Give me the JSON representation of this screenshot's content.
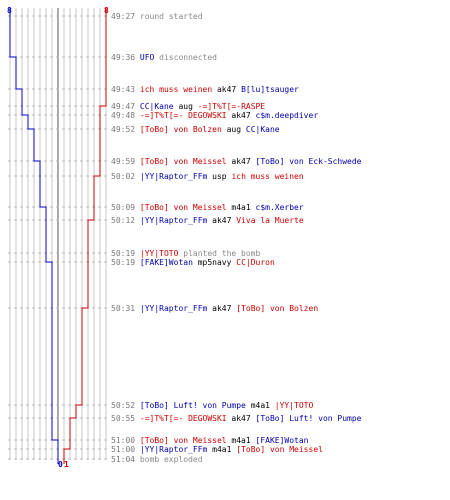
{
  "graph": {
    "top_scores": {
      "blue": "8",
      "red": "8"
    },
    "bottom_scores": {
      "blue": "0",
      "red": "1"
    },
    "colors": {
      "blue": "#0000cc",
      "red": "#cc0000",
      "grid": "#c8c8c8",
      "axis": "#555555",
      "dash": "#bdbdbd"
    }
  },
  "log": [
    {
      "time": "49:27",
      "parts": [
        {
          "t": "round started",
          "c": "txt"
        }
      ]
    },
    {
      "time": "49:36",
      "parts": [
        {
          "t": "UFO",
          "c": "b"
        },
        {
          "t": " disconnected",
          "c": "txt"
        }
      ]
    },
    {
      "time": "49:43",
      "parts": [
        {
          "t": "ich muss weinen",
          "c": "r"
        },
        {
          "t": " ak47 ",
          "c": "w"
        },
        {
          "t": "B[lu]tsauger",
          "c": "b"
        }
      ]
    },
    {
      "time": "49:47",
      "parts": [
        {
          "t": "CC|Kane",
          "c": "b"
        },
        {
          "t": " aug ",
          "c": "w"
        },
        {
          "t": "-=]T%T[=-RASPE",
          "c": "r"
        }
      ]
    },
    {
      "time": "49:48",
      "parts": [
        {
          "t": "-=]T%T[=- DEGOWSKI",
          "c": "r"
        },
        {
          "t": " ak47 ",
          "c": "w"
        },
        {
          "t": "c$m.deepdiver",
          "c": "b"
        }
      ]
    },
    {
      "time": "49:52",
      "parts": [
        {
          "t": "[ToBo] von Bolzen",
          "c": "r"
        },
        {
          "t": " aug ",
          "c": "w"
        },
        {
          "t": "CC|Kane",
          "c": "b"
        }
      ]
    },
    {
      "time": "49:59",
      "parts": [
        {
          "t": "[ToBo] von Meissel",
          "c": "r"
        },
        {
          "t": " ak47 ",
          "c": "w"
        },
        {
          "t": "[ToBo] von Eck-Schwede",
          "c": "b"
        }
      ]
    },
    {
      "time": "50:02",
      "parts": [
        {
          "t": "|YY|Raptor_FFm",
          "c": "b"
        },
        {
          "t": " usp ",
          "c": "w"
        },
        {
          "t": "ich muss weinen",
          "c": "r"
        }
      ]
    },
    {
      "time": "50:09",
      "parts": [
        {
          "t": "[ToBo] von Meissel",
          "c": "r"
        },
        {
          "t": " m4a1 ",
          "c": "w"
        },
        {
          "t": "c$m.Xerber",
          "c": "b"
        }
      ]
    },
    {
      "time": "50:12",
      "parts": [
        {
          "t": "|YY|Raptor_FFm",
          "c": "b"
        },
        {
          "t": " ak47 ",
          "c": "w"
        },
        {
          "t": "Viva la Muerte",
          "c": "r"
        }
      ]
    },
    {
      "time": "50:19",
      "parts": [
        {
          "t": "|YY|TOTO",
          "c": "r"
        },
        {
          "t": " planted the bomb",
          "c": "txt"
        }
      ]
    },
    {
      "time": "50:19",
      "parts": [
        {
          "t": "[FAKE]Wotan",
          "c": "b"
        },
        {
          "t": " mp5navy ",
          "c": "w"
        },
        {
          "t": "CC|Duron",
          "c": "r"
        }
      ]
    },
    {
      "time": "50:31",
      "parts": [
        {
          "t": "|YY|Raptor_FFm",
          "c": "b"
        },
        {
          "t": " ak47 ",
          "c": "w"
        },
        {
          "t": "[ToBo] von Bolzen",
          "c": "r"
        }
      ]
    },
    {
      "time": "50:52",
      "parts": [
        {
          "t": "[ToBo] Luft! von Pumpe",
          "c": "b"
        },
        {
          "t": " m4a1 ",
          "c": "w"
        },
        {
          "t": "|YY|TOTO",
          "c": "r"
        }
      ]
    },
    {
      "time": "50:55",
      "parts": [
        {
          "t": "-=]T%T[=- DEGOWSKI",
          "c": "r"
        },
        {
          "t": " ak47 ",
          "c": "w"
        },
        {
          "t": "[ToBo] Luft! von Pumpe",
          "c": "b"
        }
      ]
    },
    {
      "time": "51:00",
      "parts": [
        {
          "t": "[ToBo] von Meissel",
          "c": "r"
        },
        {
          "t": " m4a1 ",
          "c": "w"
        },
        {
          "t": "[FAKE]Wotan",
          "c": "b"
        }
      ]
    },
    {
      "time": "51:00",
      "parts": [
        {
          "t": "|YY|Raptor_FFm",
          "c": "b"
        },
        {
          "t": " m4a1 ",
          "c": "w"
        },
        {
          "t": "[ToBo] von Meissel",
          "c": "r"
        }
      ]
    },
    {
      "time": "51:04",
      "parts": [
        {
          "t": "bomb exploded",
          "c": "txt"
        }
      ]
    }
  ]
}
